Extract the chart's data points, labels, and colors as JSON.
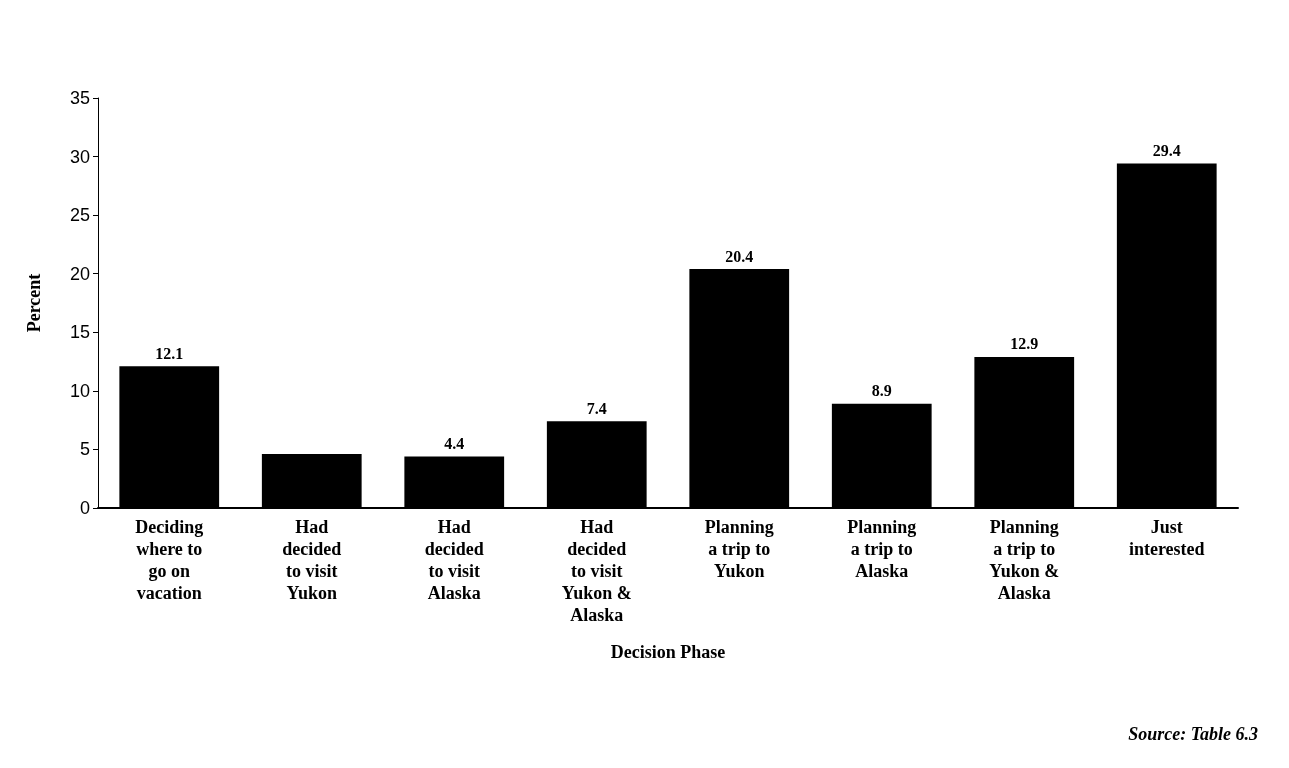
{
  "chart_data": {
    "type": "bar",
    "xlabel": "Decision Phase",
    "ylabel": "Percent",
    "categories": [
      "Deciding\nwhere to\ngo on\nvacation",
      "Had\ndecided\nto visit\nYukon",
      "Had\ndecided\nto visit\nAlaska",
      "Had\ndecided\nto visit\nYukon &\nAlaska",
      "Planning\na trip to\nYukon",
      "Planning\na trip to\nAlaska",
      "Planning\na trip to\nYukon &\nAlaska",
      "Just\ninterested"
    ],
    "values": [
      12.1,
      4.6,
      4.4,
      7.4,
      20.4,
      8.9,
      12.9,
      29.4
    ],
    "value_labels": [
      "12.1",
      null,
      "4.4",
      "7.4",
      "20.4",
      "8.9",
      "12.9",
      "29.4"
    ],
    "color": "#000000",
    "ylim": [
      0,
      35
    ],
    "yticks": [
      0,
      5,
      10,
      15,
      20,
      25,
      30,
      35
    ],
    "grid": false,
    "annotations": [
      "Source: Table 6.3"
    ]
  }
}
